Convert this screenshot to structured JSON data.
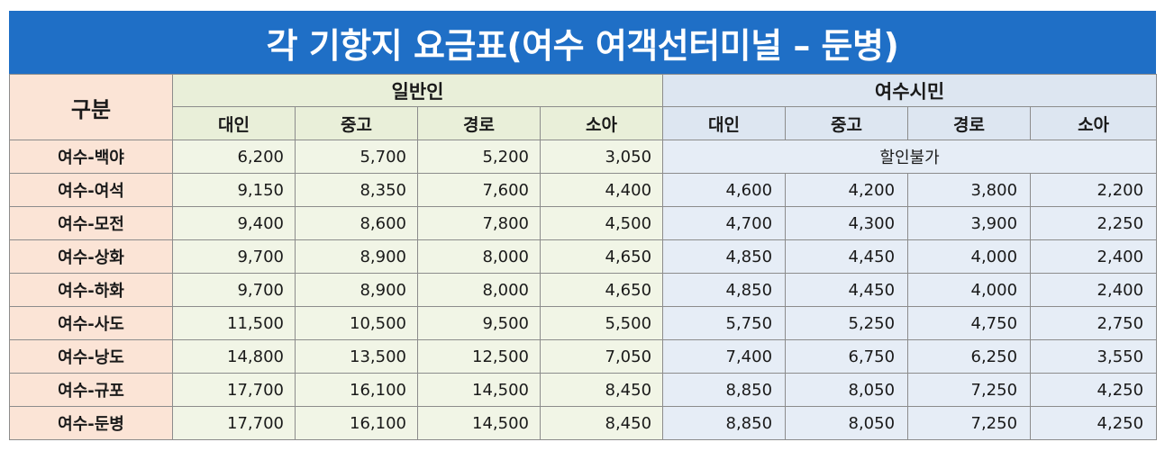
{
  "title": "각 기항지 요금표(여수 여객선터미널 – 둔병)",
  "table": {
    "gubun_label": "구분",
    "group_general": "일반인",
    "group_resident": "여수시민",
    "sub_general": [
      "대인",
      "중고",
      "경로",
      "소아"
    ],
    "sub_resident": [
      "대인",
      "중고",
      "경로",
      "소아"
    ],
    "no_discount_label": "할인불가",
    "rows": [
      {
        "route": "여수-백야",
        "general": [
          "6,200",
          "5,700",
          "5,200",
          "3,050"
        ],
        "resident": []
      },
      {
        "route": "여수-여석",
        "general": [
          "9,150",
          "8,350",
          "7,600",
          "4,400"
        ],
        "resident": [
          "4,600",
          "4,200",
          "3,800",
          "2,200"
        ]
      },
      {
        "route": "여수-모전",
        "general": [
          "9,400",
          "8,600",
          "7,800",
          "4,500"
        ],
        "resident": [
          "4,700",
          "4,300",
          "3,900",
          "2,250"
        ]
      },
      {
        "route": "여수-상화",
        "general": [
          "9,700",
          "8,900",
          "8,000",
          "4,650"
        ],
        "resident": [
          "4,850",
          "4,450",
          "4,000",
          "2,400"
        ]
      },
      {
        "route": "여수-하화",
        "general": [
          "9,700",
          "8,900",
          "8,000",
          "4,650"
        ],
        "resident": [
          "4,850",
          "4,450",
          "4,000",
          "2,400"
        ]
      },
      {
        "route": "여수-사도",
        "general": [
          "11,500",
          "10,500",
          "9,500",
          "5,500"
        ],
        "resident": [
          "5,750",
          "5,250",
          "4,750",
          "2,750"
        ]
      },
      {
        "route": "여수-낭도",
        "general": [
          "14,800",
          "13,500",
          "12,500",
          "7,050"
        ],
        "resident": [
          "7,400",
          "6,750",
          "6,250",
          "3,550"
        ]
      },
      {
        "route": "여수-규포",
        "general": [
          "17,700",
          "16,100",
          "14,500",
          "8,450"
        ],
        "resident": [
          "8,850",
          "8,050",
          "7,250",
          "4,250"
        ]
      },
      {
        "route": "여수-둔병",
        "general": [
          "17,700",
          "16,100",
          "14,500",
          "8,450"
        ],
        "resident": [
          "8,850",
          "8,050",
          "7,250",
          "4,250"
        ]
      }
    ]
  }
}
